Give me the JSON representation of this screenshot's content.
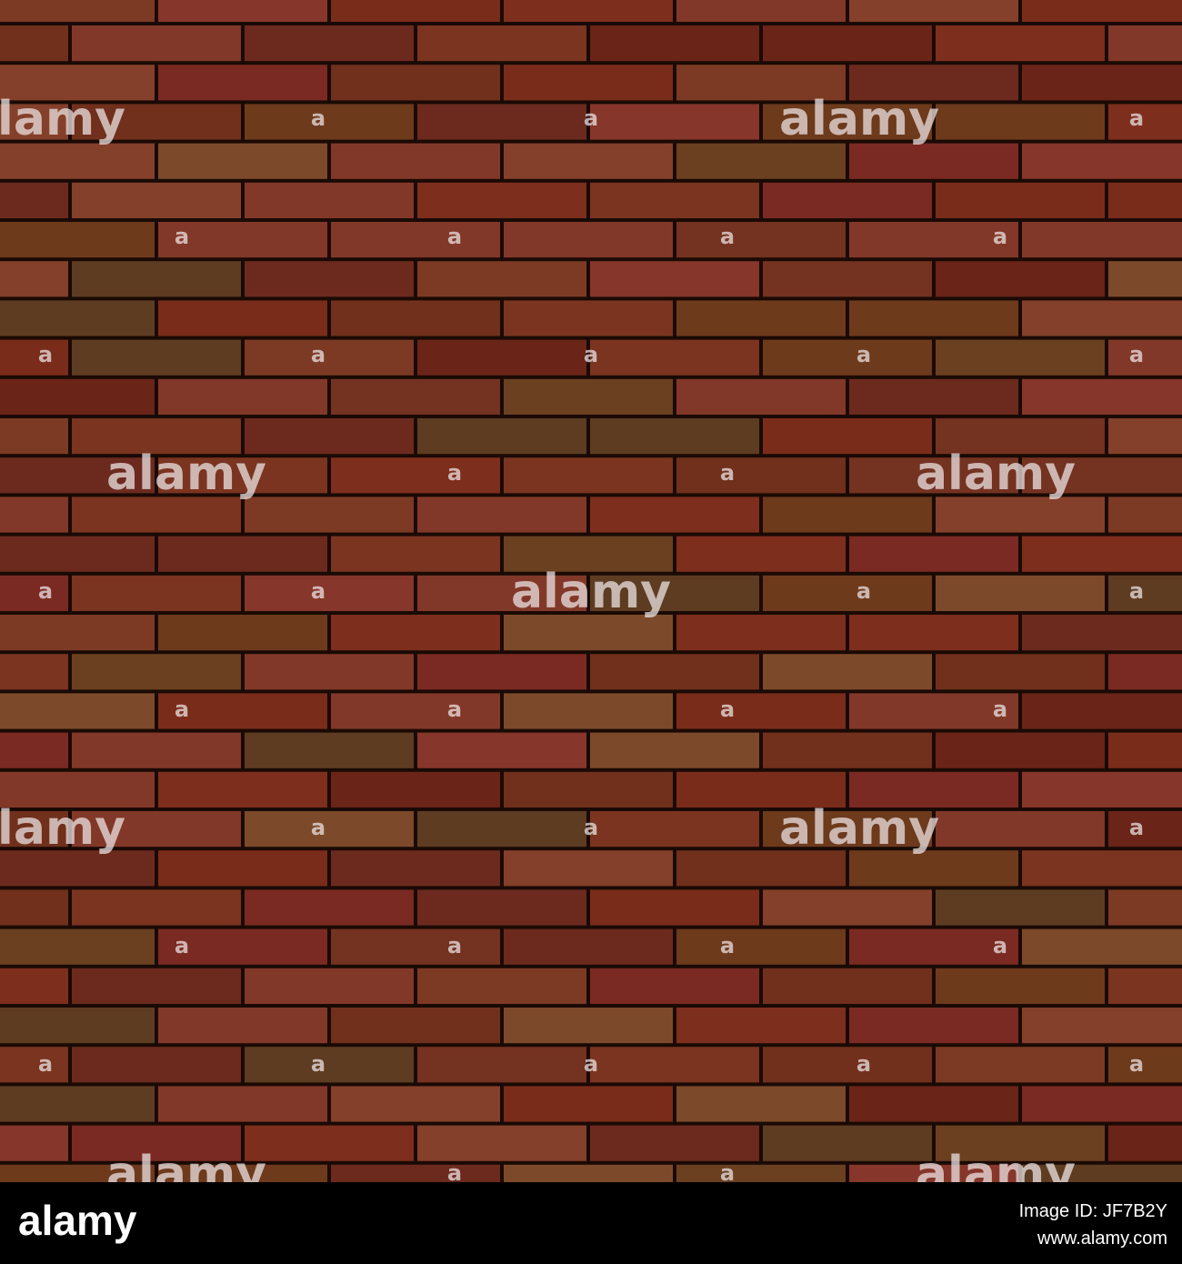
{
  "watermark": {
    "logo": "alamy",
    "mark": "a"
  },
  "footer": {
    "logo": "alamy",
    "image_id": "Image ID: JF7B2Y",
    "url": "www.alamy.com"
  }
}
